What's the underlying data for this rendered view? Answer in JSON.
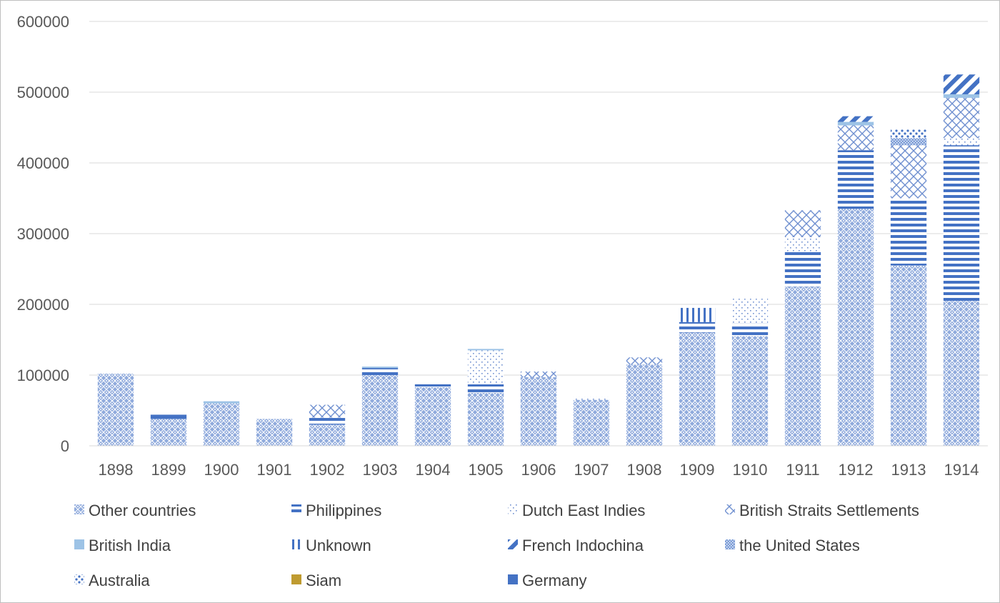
{
  "chart_data": {
    "type": "bar",
    "stacked": true,
    "title": "",
    "xlabel": "",
    "ylabel": "",
    "ylim": [
      0,
      600000
    ],
    "yticks": [
      0,
      100000,
      200000,
      300000,
      400000,
      500000,
      600000
    ],
    "grid": true,
    "legend": "bottom",
    "categories": [
      "1898",
      "1899",
      "1900",
      "1901",
      "1902",
      "1903",
      "1904",
      "1905",
      "1906",
      "1907",
      "1908",
      "1909",
      "1910",
      "1911",
      "1912",
      "1913",
      "1914"
    ],
    "series": [
      {
        "name": "Other countries",
        "pattern": "diamond-dots",
        "color": "#4472c4",
        "values": [
          102000,
          38000,
          60000,
          38000,
          30000,
          100000,
          83000,
          75000,
          97000,
          65000,
          115000,
          160000,
          155000,
          225000,
          335000,
          255000,
          205000
        ]
      },
      {
        "name": "Philippines",
        "pattern": "horizontal-lines",
        "color": "#4472c4",
        "values": [
          0,
          0,
          0,
          0,
          10000,
          10000,
          4000,
          12000,
          0,
          0,
          0,
          15000,
          18000,
          50000,
          83000,
          95000,
          220000
        ]
      },
      {
        "name": "Dutch East Indies",
        "pattern": "sparse-dots",
        "color": "#4472c4",
        "values": [
          0,
          0,
          0,
          0,
          0,
          0,
          0,
          48000,
          0,
          4000,
          0,
          0,
          35000,
          20000,
          0,
          0,
          10000
        ]
      },
      {
        "name": "British Straits Settlements",
        "pattern": "crosshatch",
        "color": "#4472c4",
        "values": [
          0,
          0,
          0,
          0,
          18000,
          0,
          0,
          0,
          8000,
          0,
          10000,
          0,
          0,
          38000,
          35000,
          75000,
          57000
        ]
      },
      {
        "name": "British India",
        "pattern": "solid",
        "color": "#9dc3e6",
        "values": [
          0,
          0,
          3000,
          0,
          0,
          2000,
          0,
          2000,
          0,
          0,
          0,
          0,
          0,
          0,
          5000,
          0,
          5000
        ]
      },
      {
        "name": "Unknown",
        "pattern": "vertical-lines",
        "color": "#4472c4",
        "values": [
          0,
          0,
          0,
          0,
          0,
          0,
          0,
          0,
          0,
          0,
          0,
          20000,
          0,
          0,
          0,
          0,
          0
        ]
      },
      {
        "name": "French Indochina",
        "pattern": "diagonal-stripes",
        "color": "#4472c4",
        "values": [
          0,
          0,
          0,
          0,
          0,
          0,
          0,
          0,
          0,
          0,
          0,
          0,
          0,
          0,
          8000,
          0,
          28000
        ]
      },
      {
        "name": "the United States",
        "pattern": "dense-dots",
        "color": "#4472c4",
        "values": [
          0,
          0,
          0,
          0,
          0,
          0,
          0,
          0,
          0,
          0,
          0,
          0,
          0,
          0,
          0,
          10000,
          0
        ]
      },
      {
        "name": "Australia",
        "pattern": "large-dots",
        "color": "#4472c4",
        "values": [
          0,
          0,
          0,
          0,
          0,
          0,
          0,
          0,
          0,
          0,
          0,
          0,
          0,
          0,
          0,
          12000,
          0
        ]
      },
      {
        "name": "Siam",
        "pattern": "solid",
        "color": "#bf9b30",
        "values": [
          0,
          0,
          0,
          0,
          0,
          0,
          0,
          0,
          0,
          0,
          0,
          0,
          0,
          0,
          0,
          0,
          0
        ]
      },
      {
        "name": "Germany",
        "pattern": "solid",
        "color": "#4472c4",
        "values": [
          0,
          6000,
          0,
          0,
          0,
          0,
          0,
          0,
          0,
          0,
          0,
          0,
          0,
          0,
          0,
          0,
          0
        ]
      }
    ]
  }
}
